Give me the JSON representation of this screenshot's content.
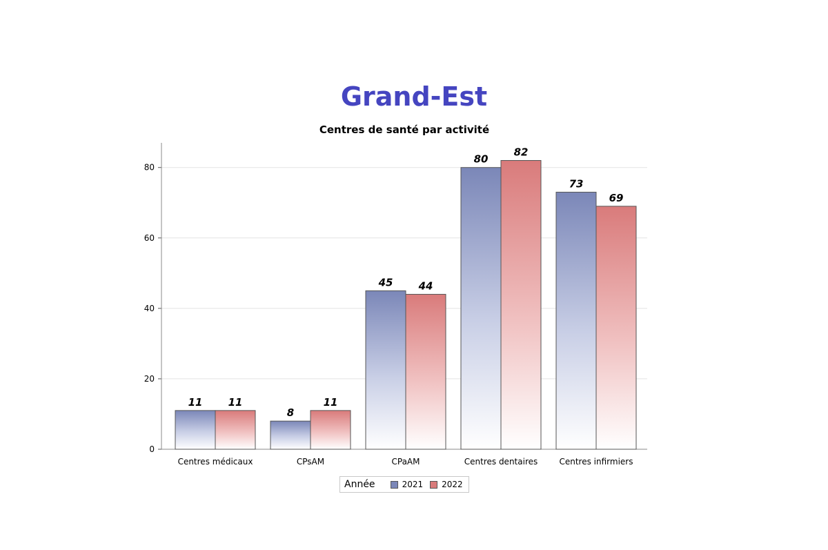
{
  "page_title": "Grand-Est",
  "chart_data": {
    "type": "bar",
    "title": "Centres de santé par activité",
    "xlabel": "",
    "ylabel": "",
    "categories": [
      "Centres médicaux",
      "CPsAM",
      "CPaAM",
      "Centres dentaires",
      "Centres infirmiers"
    ],
    "series": [
      {
        "name": "2021",
        "values": [
          11,
          8,
          45,
          80,
          73
        ],
        "color": "#7b87b8"
      },
      {
        "name": "2022",
        "values": [
          11,
          11,
          44,
          82,
          69
        ],
        "color": "#d97b7b"
      }
    ],
    "ylim": [
      0,
      87
    ],
    "yticks": [
      0,
      20,
      40,
      60,
      80
    ],
    "grid": true,
    "legend": {
      "title": "Année",
      "placement": "bottom-center"
    }
  }
}
